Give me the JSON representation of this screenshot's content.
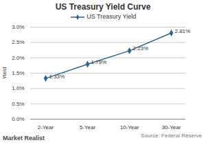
{
  "chart_data": {
    "type": "line",
    "title": "US Treasury Yield Curve",
    "y_label": "Yield",
    "categories": [
      "2-Year",
      "5-Year",
      "10-Year",
      "30-Year"
    ],
    "series": [
      {
        "name": "US Treasury Yield",
        "color": "#2b6496",
        "marker": "diamond",
        "values": [
          1.33,
          1.79,
          2.23,
          2.81
        ],
        "value_labels": [
          "1.33%",
          "1.79%",
          "2.23%",
          "2.81%"
        ]
      }
    ],
    "ylim": [
      0,
      3
    ],
    "yticks": [
      {
        "value": 0,
        "label": "0.0%"
      },
      {
        "value": 0.5,
        "label": "0.5%"
      },
      {
        "value": 1,
        "label": "1.0%"
      },
      {
        "value": 1.5,
        "label": "1.5%"
      },
      {
        "value": 2,
        "label": "2.0%"
      },
      {
        "value": 2.5,
        "label": "2.5%"
      },
      {
        "value": 3,
        "label": "3.0%"
      }
    ],
    "grid": true,
    "legend": "top",
    "data_labels": true,
    "source": "Source: Federal Reserve",
    "brand": "Market Realist"
  }
}
